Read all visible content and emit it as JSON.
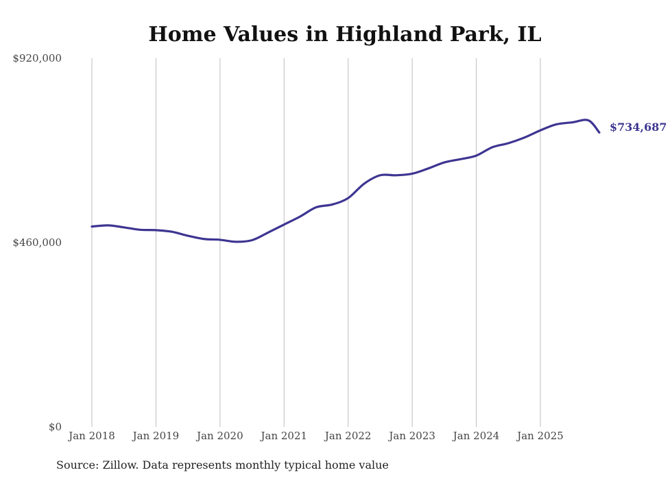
{
  "chart_data": {
    "type": "line",
    "title": "Home Values in Highland Park, IL",
    "xlabel": "",
    "ylabel": "",
    "ylim": [
      0,
      920000
    ],
    "y_ticks": [
      {
        "value": 0,
        "label": "$0"
      },
      {
        "value": 460000,
        "label": "$460,000"
      },
      {
        "value": 920000,
        "label": "$920,000"
      }
    ],
    "x_ticks": [
      {
        "value": 2018.0,
        "label": "Jan 2018"
      },
      {
        "value": 2019.0,
        "label": "Jan 2019"
      },
      {
        "value": 2020.0,
        "label": "Jan 2020"
      },
      {
        "value": 2021.0,
        "label": "Jan 2021"
      },
      {
        "value": 2022.0,
        "label": "Jan 2022"
      },
      {
        "value": 2023.0,
        "label": "Jan 2023"
      },
      {
        "value": 2024.0,
        "label": "Jan 2024"
      },
      {
        "value": 2025.0,
        "label": "Jan 2025"
      }
    ],
    "xlim": [
      2017.6,
      2026.2
    ],
    "grid": "vertical",
    "series": [
      {
        "name": "Typical home value",
        "color": "#3d3591",
        "x": [
          2018.0,
          2018.25,
          2018.5,
          2018.75,
          2019.0,
          2019.25,
          2019.5,
          2019.75,
          2020.0,
          2020.25,
          2020.5,
          2020.75,
          2021.0,
          2021.25,
          2021.5,
          2021.75,
          2022.0,
          2022.25,
          2022.5,
          2022.75,
          2023.0,
          2023.25,
          2023.5,
          2023.75,
          2024.0,
          2024.25,
          2024.5,
          2024.75,
          2025.0,
          2025.25,
          2025.5,
          2025.75,
          2025.92
        ],
        "values": [
          500000,
          503000,
          498000,
          492000,
          491000,
          487000,
          477000,
          469000,
          467000,
          462000,
          466000,
          485000,
          505000,
          525000,
          548000,
          555000,
          571000,
          607000,
          628000,
          628000,
          632000,
          645000,
          660000,
          668000,
          677000,
          698000,
          708000,
          722000,
          740000,
          755000,
          760000,
          765000,
          734687
        ]
      }
    ],
    "end_label": "$734,687"
  },
  "source_note": "Source: Zillow. Data represents monthly typical home value"
}
